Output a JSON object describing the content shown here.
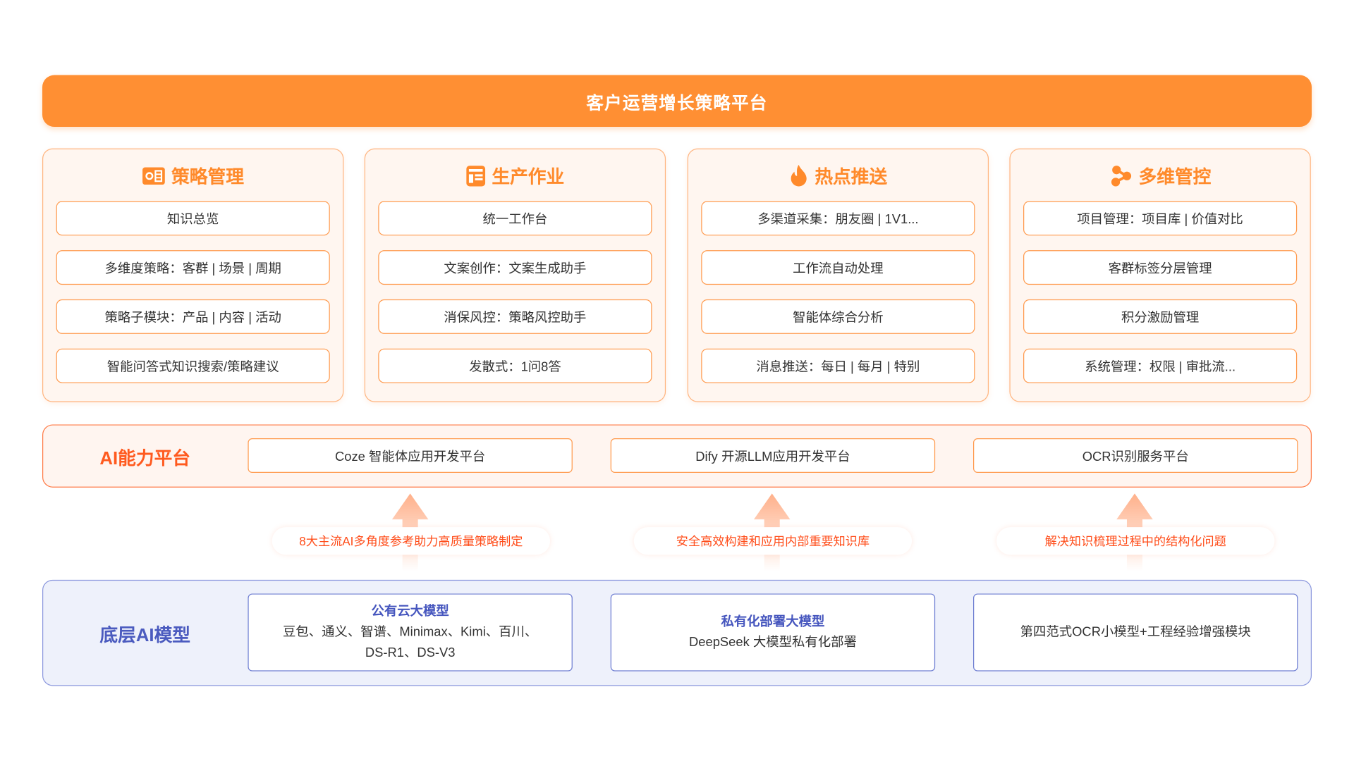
{
  "title": "客户运营增长策略平台",
  "colors": {
    "primary": "#FF8F33",
    "ai_accent": "#FF5A1F",
    "base_accent": "#4B5BBF"
  },
  "modules": [
    {
      "title": "策略管理",
      "icon": "strategy-panel-icon",
      "items": [
        "知识总览",
        "多维度策略：客群 | 场景 | 周期",
        "策略子模块：产品 | 内容 | 活动",
        "智能问答式知识搜索/策略建议"
      ]
    },
    {
      "title": "生产作业",
      "icon": "workbench-icon",
      "items": [
        "统一工作台",
        "文案创作：文案生成助手",
        "消保风控：策略风控助手",
        "发散式：1问8答"
      ]
    },
    {
      "title": "热点推送",
      "icon": "flame-icon",
      "items": [
        "多渠道采集：朋友圈 | 1V1...",
        "工作流自动处理",
        "智能体综合分析",
        "消息推送：每日 | 每月 | 特别"
      ]
    },
    {
      "title": "多维管控",
      "icon": "nodes-icon",
      "items": [
        "项目管理：项目库 | 价值对比",
        "客群标签分层管理",
        "积分激励管理",
        "系统管理：权限 | 审批流..."
      ]
    }
  ],
  "ai_platform": {
    "label": "AI能力平台",
    "items": [
      "Coze 智能体应用开发平台",
      "Dify 开源LLM应用开发平台",
      "OCR识别服务平台"
    ]
  },
  "benefits": [
    "8大主流AI多角度参考助力高质量策略制定",
    "安全高效构建和应用内部重要知识库",
    "解决知识梳理过程中的结构化问题"
  ],
  "base_models": {
    "label": "底层AI模型",
    "items": [
      {
        "title": "公有云大模型",
        "lines": [
          "豆包、通义、智谱、Minimax、Kimi、百川、",
          "DS-R1、DS-V3"
        ]
      },
      {
        "title": "私有化部署大模型",
        "lines": [
          "DeepSeek 大模型私有化部署"
        ]
      },
      {
        "title": "",
        "lines": [
          "第四范式OCR小模型+工程经验增强模块"
        ]
      }
    ]
  }
}
